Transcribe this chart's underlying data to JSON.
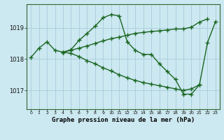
{
  "title": "Graphe pression niveau de la mer (hPa)",
  "bg_color": "#cce8f0",
  "grid_color": "#aaccdd",
  "line_color": "#1a6622",
  "x_ticks": [
    0,
    1,
    2,
    3,
    4,
    5,
    6,
    7,
    8,
    9,
    10,
    11,
    12,
    13,
    14,
    15,
    16,
    17,
    18,
    19,
    20,
    21,
    22,
    23
  ],
  "y_ticks": [
    1017,
    1018,
    1019
  ],
  "ylim": [
    1016.4,
    1019.75
  ],
  "xlim": [
    -0.5,
    23.5
  ],
  "line1_x": [
    0,
    1,
    2,
    3,
    4,
    5,
    6,
    7,
    8,
    9,
    10,
    11,
    12,
    13,
    14,
    15,
    16,
    17,
    18,
    19,
    20,
    21
  ],
  "line1_y": [
    1018.05,
    1018.35,
    1018.55,
    1018.28,
    1018.22,
    1018.3,
    1018.6,
    1018.82,
    1019.05,
    1019.32,
    1019.42,
    1019.38,
    1018.55,
    1018.28,
    1018.15,
    1018.15,
    1017.85,
    1017.6,
    1017.35,
    1016.88,
    1016.88,
    1017.18
  ],
  "line2_x": [
    4,
    5,
    6,
    7,
    8,
    9,
    10,
    11,
    12,
    13,
    14,
    15,
    16,
    17,
    18,
    19,
    20,
    21,
    22
  ],
  "line2_y": [
    1018.22,
    1018.28,
    1018.35,
    1018.42,
    1018.5,
    1018.58,
    1018.65,
    1018.7,
    1018.76,
    1018.82,
    1018.85,
    1018.88,
    1018.9,
    1018.93,
    1018.96,
    1018.96,
    1019.02,
    1019.18,
    1019.28
  ],
  "line3_x": [
    4,
    5,
    6,
    7,
    8,
    9,
    10,
    11,
    12,
    13,
    14,
    15,
    16,
    17,
    18,
    19,
    20,
    21,
    22,
    23
  ],
  "line3_y": [
    1018.22,
    1018.18,
    1018.08,
    1017.95,
    1017.85,
    1017.72,
    1017.62,
    1017.5,
    1017.4,
    1017.32,
    1017.25,
    1017.2,
    1017.15,
    1017.1,
    1017.05,
    1017.0,
    1017.05,
    1017.18,
    1018.52,
    1019.2
  ],
  "marker": "+",
  "markersize": 4,
  "linewidth": 1.0
}
